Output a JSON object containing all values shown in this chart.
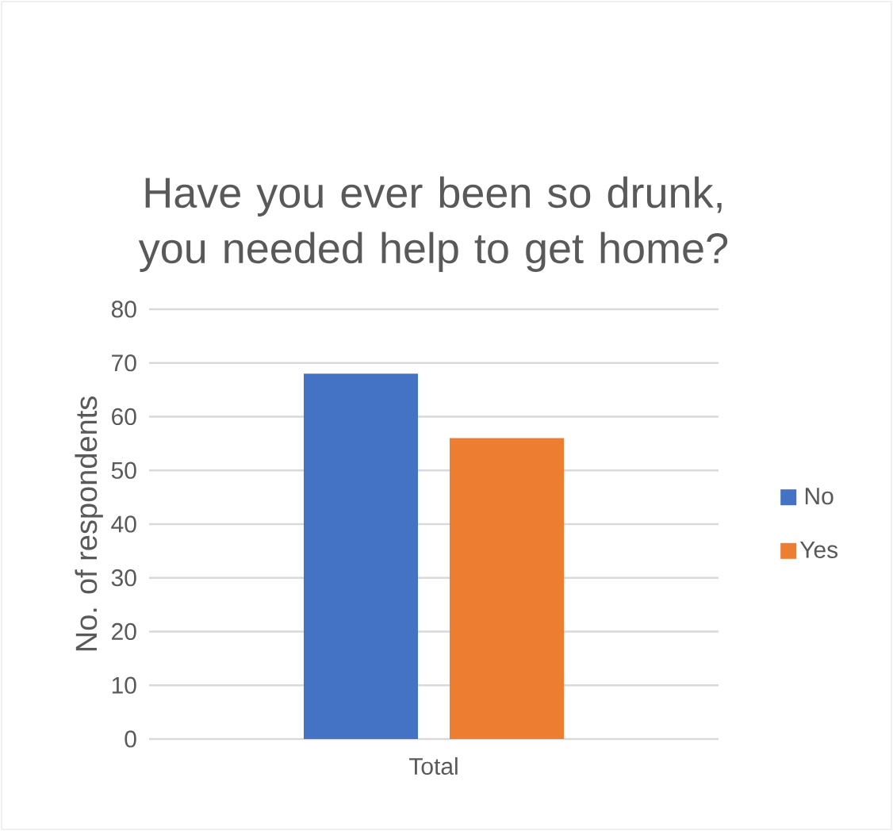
{
  "chart_data": {
    "type": "bar",
    "title": "Have you ever been so drunk, you needed help to get home?",
    "ylabel": "No. of respondents",
    "categories": [
      "Total"
    ],
    "series": [
      {
        "name": "No",
        "color": "#4472c4",
        "values": [
          68
        ]
      },
      {
        "name": "Yes",
        "color": "#ed7d31",
        "values": [
          56
        ]
      }
    ],
    "ylim": [
      0,
      80
    ],
    "yticks": [
      0,
      10,
      20,
      30,
      40,
      50,
      60,
      70,
      80
    ],
    "grid": "y",
    "legend": "right"
  }
}
